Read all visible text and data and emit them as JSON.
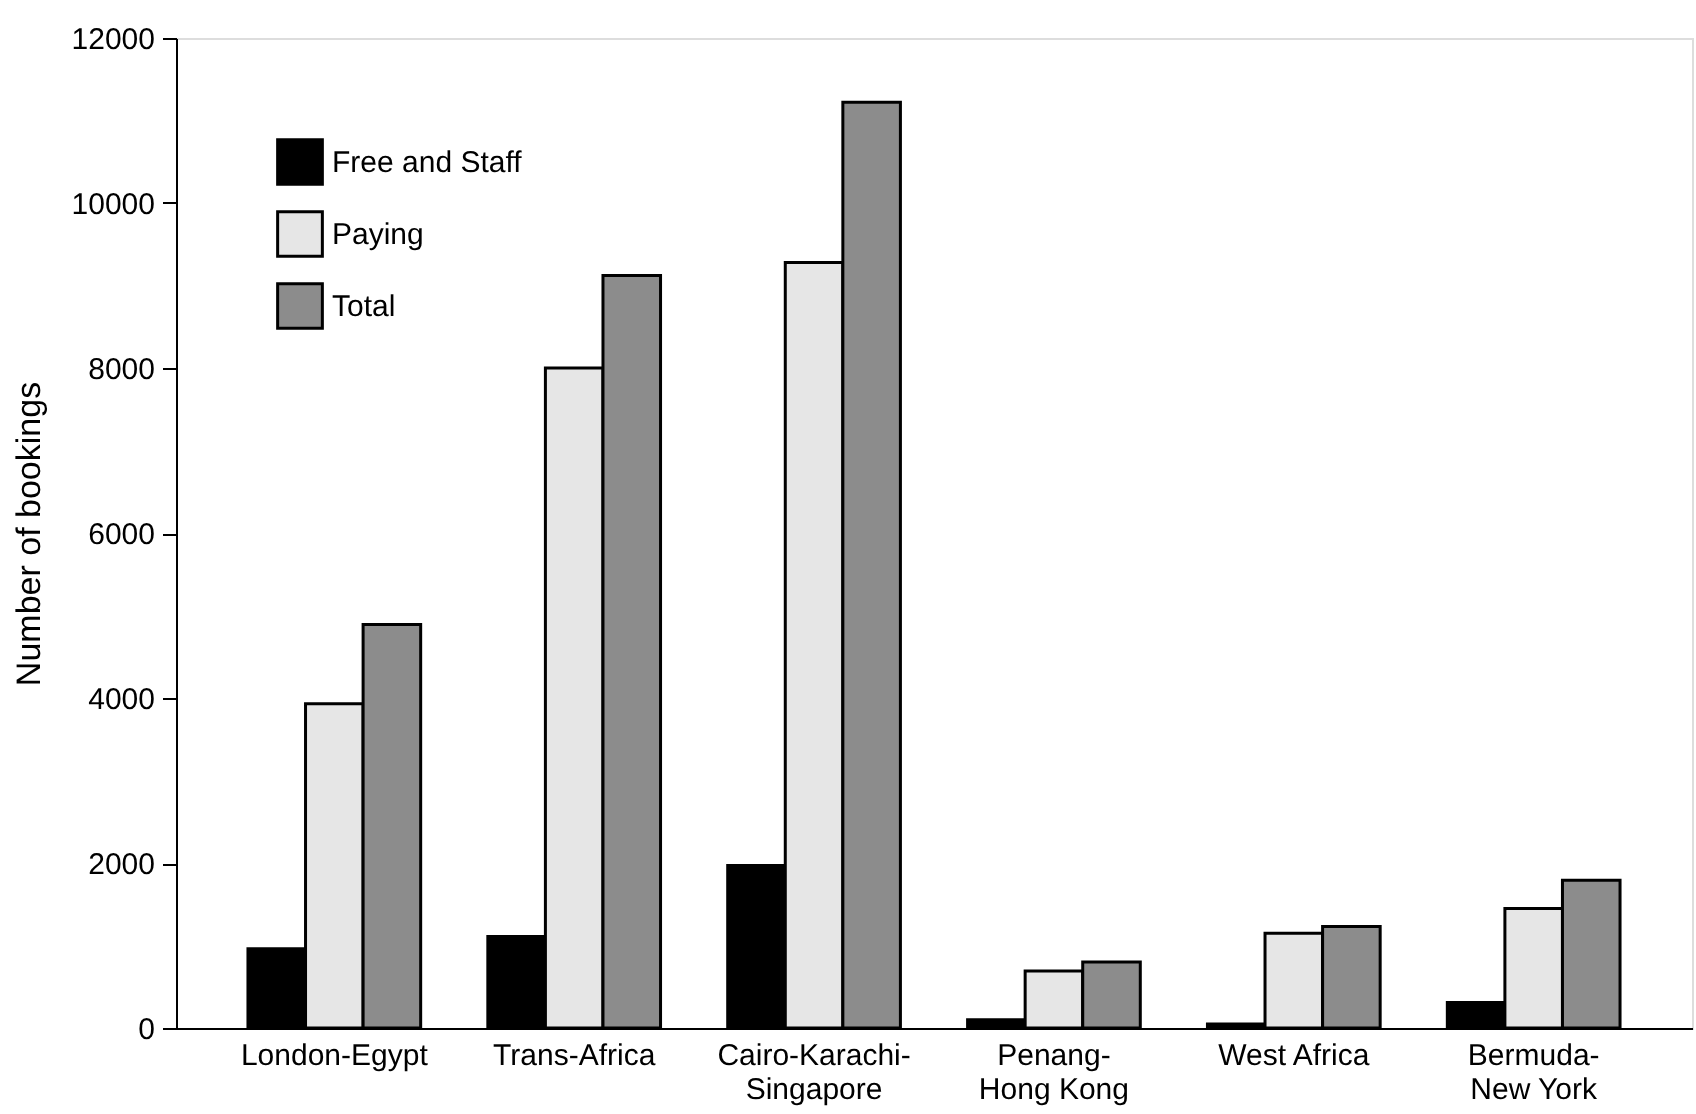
{
  "chart_data": {
    "type": "bar",
    "ylabel": "Number of bookings",
    "categories": [
      "London-Egypt",
      "Trans-Africa",
      "Cairo-Karachi-Singapore",
      "Penang-Hong Kong",
      "West Africa",
      "Bermuda-New York"
    ],
    "series": [
      {
        "name": "Free and Staff",
        "color": "#000000",
        "values": [
          960,
          1110,
          1970,
          100,
          50,
          310
        ]
      },
      {
        "name": "Paying",
        "color": "#e6e6e6",
        "values": [
          3930,
          8000,
          9280,
          690,
          1150,
          1450
        ]
      },
      {
        "name": "Total",
        "color": "#8c8c8c",
        "values": [
          4890,
          9120,
          11220,
          800,
          1230,
          1790
        ]
      }
    ],
    "ylim": [
      0,
      12000
    ],
    "yticks": [
      0,
      2000,
      4000,
      6000,
      8000,
      10000,
      12000
    ],
    "grid": false,
    "legend": "top left"
  }
}
